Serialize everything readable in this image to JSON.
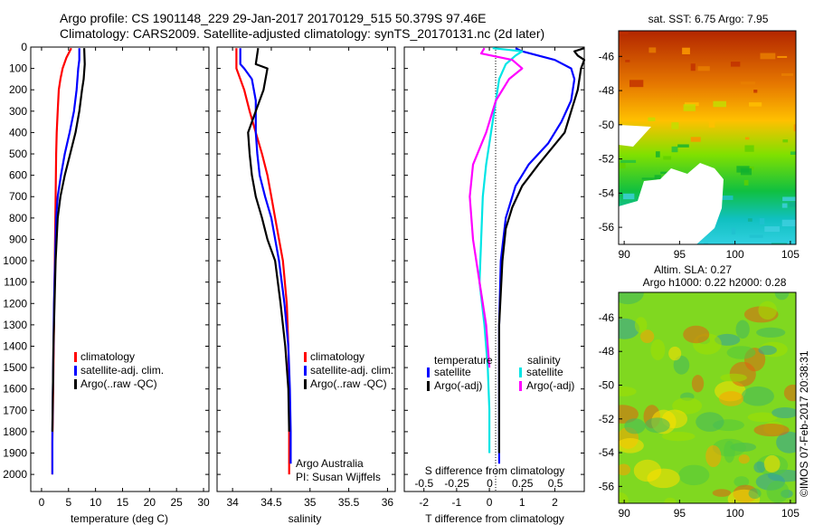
{
  "header": {
    "line1": "Argo profile: CS 1901148_229 29-Jan-2017 20170129_515 50.379S 97.46E",
    "line2": "Climatology: CARS2009. Satellite-adjusted climatology: synTS_20170131.nc (2d later)"
  },
  "colors": {
    "climatology": "#ff0000",
    "satellite": "#0000ff",
    "argo": "#000000",
    "sat_salinity": "#00e5e5",
    "argo_salinity": "#ff00ff"
  },
  "chart_data": [
    {
      "type": "line",
      "id": "temperature",
      "xlabel": "temperature (deg C)",
      "xlim": [
        -2,
        31
      ],
      "ylim": [
        2080,
        0
      ],
      "xticks": [
        0,
        5,
        10,
        15,
        20,
        25,
        30
      ],
      "yticks": [
        0,
        100,
        200,
        300,
        400,
        500,
        600,
        700,
        800,
        900,
        1000,
        1100,
        1200,
        1300,
        1400,
        1500,
        1600,
        1700,
        1800,
        1900,
        2000
      ],
      "legend": [
        "climatology",
        "satellite-adj. clim.",
        "Argo(..raw -QC)"
      ],
      "series": [
        {
          "name": "climatology",
          "color": "#ff0000",
          "x": [
            5.5,
            4.6,
            3.9,
            3.5,
            3.2,
            3.0,
            2.8,
            2.7,
            2.6,
            2.5,
            2.4,
            2.3,
            2.2,
            2.1,
            2.0,
            2.0,
            2.0
          ],
          "y": [
            5,
            50,
            100,
            150,
            200,
            300,
            400,
            500,
            700,
            900,
            1100,
            1300,
            1500,
            1700,
            1850,
            1950,
            2000
          ]
        },
        {
          "name": "satellite-adj. clim.",
          "color": "#0000ff",
          "x": [
            7.0,
            7.0,
            6.8,
            6.5,
            6.0,
            5.2,
            4.3,
            3.6,
            3.0,
            2.7,
            2.5,
            2.3,
            2.2,
            2.1,
            2.0,
            2.0
          ],
          "y": [
            5,
            60,
            100,
            200,
            300,
            400,
            500,
            600,
            700,
            800,
            1000,
            1200,
            1400,
            1600,
            1800,
            2000
          ]
        },
        {
          "name": "Argo(..raw -QC)",
          "color": "#000000",
          "x": [
            7.9,
            8.0,
            7.8,
            7.5,
            7.0,
            6.3,
            5.3,
            4.3,
            3.5,
            3.0,
            2.6,
            2.4,
            2.2,
            2.1,
            2.0
          ],
          "y": [
            5,
            80,
            150,
            200,
            300,
            400,
            500,
            600,
            700,
            800,
            1000,
            1200,
            1400,
            1600,
            1800
          ]
        }
      ]
    },
    {
      "type": "line",
      "id": "salinity",
      "xlabel": "salinity",
      "xlim": [
        33.8,
        36.1
      ],
      "ylim": [
        2080,
        0
      ],
      "xticks": [
        34,
        34.5,
        35,
        35.5,
        36
      ],
      "xtick_labels": [
        "34",
        "34.5",
        "35",
        "35.5",
        "36"
      ],
      "legend": [
        "climatology",
        "satellite-adj. clim.",
        "Argo(..raw -QC)"
      ],
      "annotation": [
        "Argo Australia",
        "PI: Susan Wijffels"
      ],
      "series": [
        {
          "name": "climatology",
          "color": "#ff0000",
          "x": [
            34.05,
            34.05,
            34.1,
            34.15,
            34.22,
            34.3,
            34.38,
            34.45,
            34.5,
            34.55,
            34.6,
            34.65,
            34.7,
            34.72,
            34.73,
            34.73,
            34.73
          ],
          "y": [
            5,
            100,
            150,
            200,
            300,
            400,
            500,
            600,
            700,
            800,
            900,
            1000,
            1200,
            1400,
            1600,
            1800,
            2000
          ]
        },
        {
          "name": "satellite-adj. clim.",
          "color": "#0000ff",
          "x": [
            34.1,
            34.1,
            34.15,
            34.25,
            34.3,
            34.3,
            34.32,
            34.35,
            34.42,
            34.5,
            34.6,
            34.67,
            34.72,
            34.74,
            34.75,
            34.75
          ],
          "y": [
            5,
            80,
            100,
            150,
            250,
            400,
            500,
            600,
            700,
            800,
            1000,
            1200,
            1400,
            1600,
            1800,
            1950
          ]
        },
        {
          "name": "Argo(..raw -QC)",
          "color": "#000000",
          "x": [
            34.33,
            34.3,
            34.45,
            34.4,
            34.3,
            34.2,
            34.22,
            34.25,
            34.3,
            34.38,
            34.45,
            34.55,
            34.62,
            34.68,
            34.72,
            34.73
          ],
          "y": [
            5,
            80,
            100,
            200,
            300,
            400,
            500,
            600,
            700,
            800,
            900,
            1000,
            1200,
            1400,
            1600,
            1800
          ]
        }
      ]
    },
    {
      "type": "line",
      "id": "difference",
      "xlabel": "T difference from climatology",
      "xlabel_top": "S difference from climatology",
      "xlim": [
        -2.6,
        2.9
      ],
      "ylim": [
        2080,
        0
      ],
      "xticks": [
        -2,
        -1,
        0,
        1,
        2
      ],
      "sticks_values": [
        -0.5,
        -0.25,
        0,
        0.25,
        0.5
      ],
      "sticks_labels": [
        "-0.5",
        "-0.25",
        "0",
        "0.25",
        "0.5"
      ],
      "legend_titles": [
        "temperature",
        "salinity"
      ],
      "legend": [
        "satellite",
        "Argo(-adj)",
        "satellite",
        "Argo(-adj)"
      ],
      "series": [
        {
          "name": "satellite",
          "color": "#0000ff",
          "x": [
            0.8,
            1.0,
            1.5,
            2.0,
            2.5,
            2.6,
            2.5,
            2.2,
            1.8,
            1.2,
            0.8,
            0.5,
            0.35,
            0.3,
            0.3,
            0.3
          ],
          "y": [
            5,
            20,
            40,
            60,
            100,
            150,
            250,
            350,
            450,
            550,
            650,
            800,
            1000,
            1300,
            1600,
            1950
          ]
        },
        {
          "name": "Argo(-adj)",
          "color": "#000000",
          "x": [
            2.9,
            2.6,
            2.7,
            2.9,
            2.8,
            2.7,
            2.3,
            1.5,
            1.0,
            0.7,
            0.5,
            0.4,
            0.3,
            0.3,
            0.3
          ],
          "y": [
            5,
            20,
            40,
            60,
            100,
            200,
            400,
            550,
            650,
            750,
            850,
            1000,
            1300,
            1600,
            1900
          ]
        },
        {
          "name": "satellite",
          "color": "#00e5e5",
          "x": [
            0.1,
            1.0,
            0.8,
            0.5,
            0.3,
            0.2,
            0.05,
            -0.1,
            -0.2,
            -0.25,
            -0.3,
            -0.15,
            -0.05,
            0.0,
            0.0
          ],
          "y": [
            5,
            20,
            40,
            80,
            150,
            250,
            400,
            550,
            700,
            900,
            1100,
            1300,
            1500,
            1700,
            1900
          ]
        },
        {
          "name": "Argo(-adj)",
          "color": "#ff00ff",
          "x": [
            -0.15,
            -0.25,
            0.7,
            1.0,
            0.6,
            0.2,
            -0.1,
            -0.5,
            -0.6,
            -0.5,
            -0.3,
            -0.1,
            0.0
          ],
          "y": [
            5,
            30,
            60,
            100,
            150,
            250,
            400,
            550,
            700,
            900,
            1100,
            1300,
            1500
          ]
        }
      ]
    },
    {
      "type": "heatmap",
      "id": "sst_map",
      "title": "sat. SST: 6.75 Argo: 7.95",
      "xticks": [
        90,
        95,
        100,
        105
      ],
      "yticks": [
        -46,
        -48,
        -50,
        -52,
        -54,
        -56
      ],
      "xlim": [
        89.5,
        105.5
      ],
      "ylim": [
        -57,
        -44.5
      ]
    },
    {
      "type": "heatmap",
      "id": "sla_map",
      "title_line1": "Altim. SLA: 0.27",
      "title_line2": "Argo h1000: 0.22 h2000: 0.28",
      "xticks": [
        90,
        95,
        100,
        105
      ],
      "yticks": [
        -46,
        -48,
        -50,
        -52,
        -54,
        -56
      ],
      "xlim": [
        89.5,
        105.5
      ],
      "ylim": [
        -57,
        -44.5
      ]
    }
  ],
  "side_label": "©IMOS 07-Feb-2017 20:38:31"
}
